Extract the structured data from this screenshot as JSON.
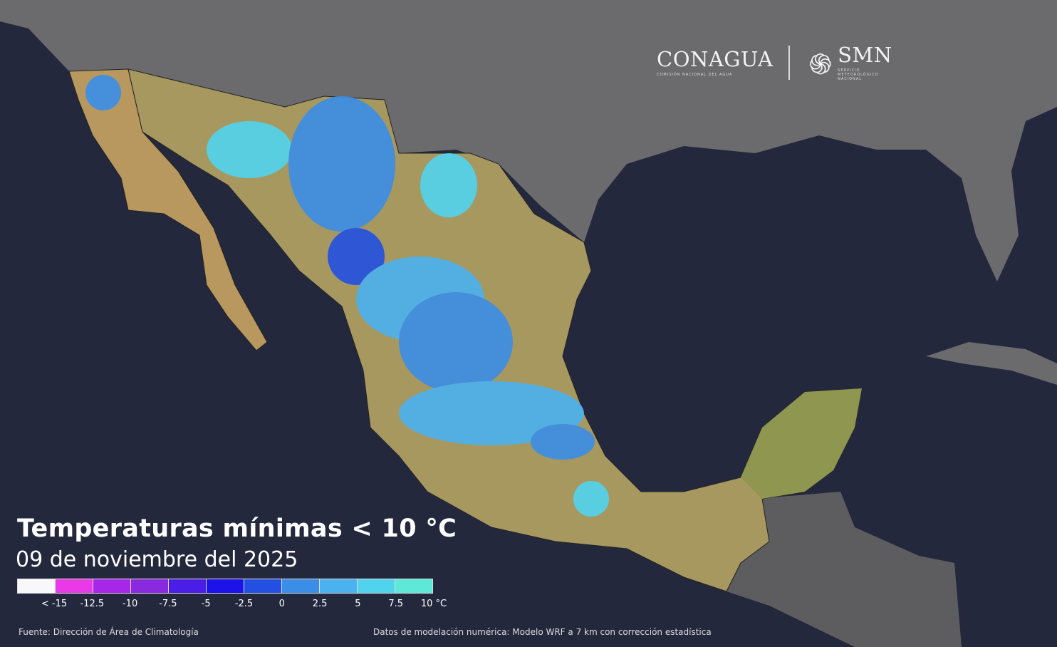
{
  "header": {
    "logo1_name": "CONAGUA",
    "logo1_sub": "COMISIÓN NACIONAL DEL AGUA",
    "logo2_name": "SMN",
    "logo2_sub": "SERVICIO METEOROLÓGICO NACIONAL"
  },
  "title": "Temperaturas mínimas < 10 °C",
  "date": "09 de noviembre del 2025",
  "legend": {
    "colors": [
      "#f8f8fa",
      "#e83ae6",
      "#a826ea",
      "#8a2ae0",
      "#4a1ee6",
      "#1c12ea",
      "#2350e2",
      "#3a8ee8",
      "#4ab2f0",
      "#50d4ee",
      "#5ee8d8"
    ],
    "ticks": [
      "< -15",
      "-12.5",
      "-10",
      "-7.5",
      "-5",
      "-2.5",
      "0",
      "2.5",
      "5",
      "7.5",
      "10 °C"
    ]
  },
  "footer": {
    "source": "Fuente: Dirección de Área de Climatología",
    "model": "Datos de modelación numérica: Modelo WRF a 7 km con corrección estadística"
  },
  "colors": {
    "ocean": "#24283d",
    "land_foreign": "#6a6a6a",
    "land_mexico": "#b59a62",
    "cold": "#4fc8f0"
  }
}
